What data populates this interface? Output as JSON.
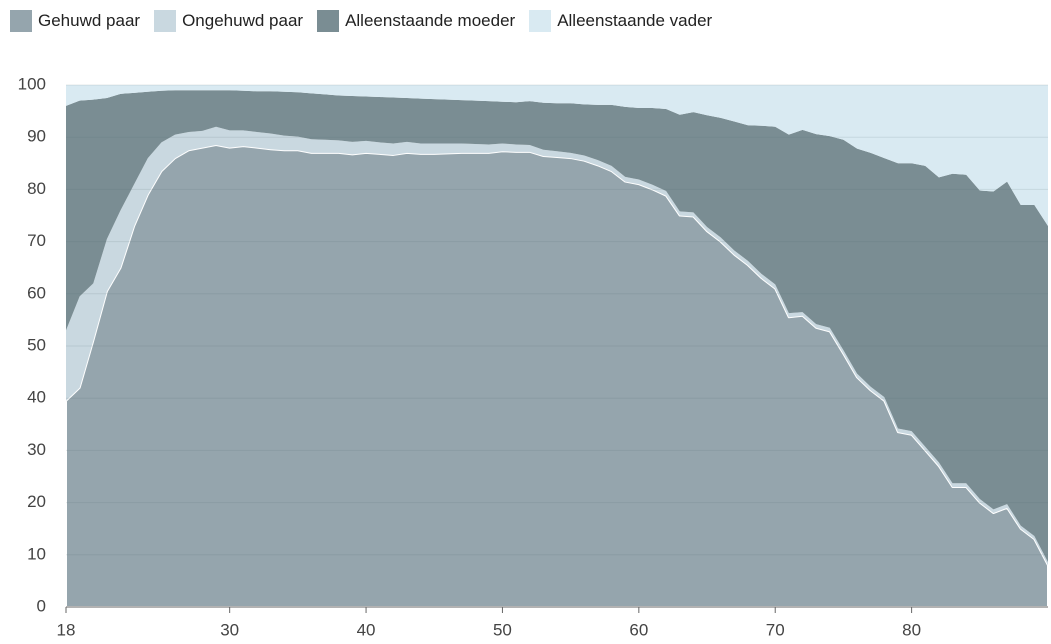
{
  "chart_data": {
    "type": "stacked-area",
    "x": [
      18,
      19,
      20,
      21,
      22,
      23,
      24,
      25,
      26,
      27,
      28,
      29,
      30,
      31,
      32,
      33,
      34,
      35,
      36,
      37,
      38,
      39,
      40,
      41,
      42,
      43,
      44,
      45,
      46,
      47,
      48,
      49,
      50,
      51,
      52,
      53,
      54,
      55,
      56,
      57,
      58,
      59,
      60,
      61,
      62,
      63,
      64,
      65,
      66,
      67,
      68,
      69,
      70,
      71,
      72,
      73,
      74,
      75,
      76,
      77,
      78,
      79,
      80,
      81,
      82,
      83,
      84,
      85,
      86,
      87,
      88,
      89,
      90
    ],
    "xlim": [
      18,
      90
    ],
    "xticks": [
      18,
      30,
      40,
      50,
      60,
      70,
      80
    ],
    "ylim": [
      0,
      100
    ],
    "yticks": [
      0,
      10,
      20,
      30,
      40,
      50,
      60,
      70,
      80,
      90,
      100
    ],
    "grid": true,
    "series": [
      {
        "name": "Gehuwd paar",
        "color": "#95a5ad",
        "values": [
          39.5,
          42,
          51,
          60.5,
          65,
          73,
          79,
          83.5,
          86,
          87.5,
          88,
          88.5,
          88,
          88.3,
          88,
          87.7,
          87.5,
          87.5,
          87,
          87,
          87,
          86.7,
          87,
          86.8,
          86.6,
          87,
          86.8,
          86.8,
          86.9,
          87,
          87,
          87,
          87.3,
          87.2,
          87.2,
          86.4,
          86.2,
          86,
          85.5,
          84.6,
          83.5,
          81.5,
          81,
          80,
          78.8,
          75,
          74.8,
          72,
          70,
          67.5,
          65.5,
          63,
          61,
          55.5,
          55.8,
          53.5,
          52.8,
          48.5,
          44,
          41.5,
          39.5,
          33.5,
          33,
          30,
          27,
          23,
          23,
          20,
          18,
          19,
          15,
          13,
          8
        ]
      },
      {
        "name": "Ongehuwd paar",
        "color": "#c9d8e0",
        "values": [
          13.5,
          17.5,
          11,
          10,
          11,
          8,
          7,
          5.5,
          4.5,
          3.5,
          3.2,
          3.5,
          3.3,
          3,
          3,
          3,
          2.8,
          2.6,
          2.6,
          2.5,
          2.4,
          2.4,
          2.3,
          2.2,
          2.2,
          2.1,
          2,
          2,
          1.9,
          1.8,
          1.7,
          1.6,
          1.5,
          1.4,
          1.3,
          1.2,
          1.1,
          1,
          1,
          1,
          1,
          0.9,
          0.9,
          0.9,
          0.9,
          0.8,
          0.8,
          0.8,
          0.8,
          0.8,
          0.8,
          0.8,
          0.8,
          0.8,
          0.7,
          0.7,
          0.7,
          0.7,
          0.7,
          0.7,
          0.7,
          0.7,
          0.7,
          0.7,
          0.7,
          0.7,
          0.7,
          0.7,
          0.7,
          0.7,
          0.6,
          0.6,
          0.6
        ]
      },
      {
        "name": "Alleenstaande moeder",
        "color": "#7a8d93",
        "values": [
          43,
          37.5,
          35.2,
          27,
          22.3,
          17.5,
          12.7,
          9.9,
          8.5,
          8,
          7.8,
          7,
          7.7,
          7.6,
          7.8,
          8.1,
          8.4,
          8.5,
          8.8,
          8.7,
          8.6,
          8.8,
          8.5,
          8.7,
          8.8,
          8.4,
          8.6,
          8.5,
          8.4,
          8.3,
          8.3,
          8.3,
          8,
          8.1,
          8.4,
          9,
          9.2,
          9.5,
          9.8,
          10.6,
          11.7,
          13.4,
          13.7,
          14.7,
          15.7,
          18.5,
          19.2,
          21.4,
          22.9,
          24.7,
          26,
          28.4,
          30.2,
          34.2,
          34.9,
          36.4,
          36.7,
          40.3,
          43.1,
          44.8,
          45.8,
          50.8,
          51.3,
          53.8,
          54.6,
          59.3,
          59.1,
          59.1,
          60.9,
          61.8,
          61.4,
          63.4,
          64.4
        ]
      },
      {
        "name": "Alleenstaande vader",
        "color": "#d9eaf2",
        "values": [
          4,
          3,
          2.8,
          2.5,
          1.7,
          1.5,
          1.3,
          1.1,
          1,
          1,
          1,
          1,
          1,
          1.1,
          1.2,
          1.2,
          1.3,
          1.4,
          1.6,
          1.8,
          2,
          2.1,
          2.2,
          2.3,
          2.4,
          2.5,
          2.6,
          2.7,
          2.8,
          2.9,
          3,
          3.1,
          3.2,
          3.3,
          3.1,
          3.4,
          3.5,
          3.5,
          3.7,
          3.8,
          3.8,
          4.2,
          4.4,
          4.4,
          4.6,
          5.7,
          5.2,
          5.8,
          6.3,
          7,
          7.7,
          7.8,
          8,
          9.5,
          8.6,
          9.4,
          9.8,
          10.5,
          12.2,
          13,
          14,
          15,
          15,
          15.5,
          17.7,
          17,
          17.2,
          20.2,
          20.4,
          18.5,
          23,
          23,
          27
        ]
      }
    ]
  }
}
